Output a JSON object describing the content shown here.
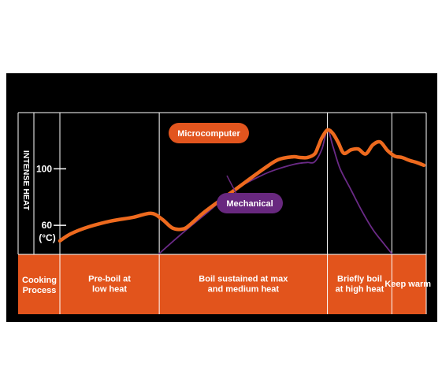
{
  "chart_data": {
    "type": "line",
    "title": "",
    "ylabel": "INTENSE HEAT",
    "y_unit": "(°C)",
    "y_ticks": [
      {
        "value": 60,
        "label": "60"
      },
      {
        "value": 100,
        "label": "100"
      }
    ],
    "ylim": [
      40,
      137
    ],
    "xlim": [
      0,
      100
    ],
    "grid": false,
    "series": [
      {
        "name": "Microcomputer",
        "color": "#ee6a1e",
        "x": [
          0,
          3,
          8,
          14,
          20,
          25,
          28,
          31,
          34,
          36,
          40,
          48,
          56,
          60,
          64,
          66,
          68,
          70,
          71,
          72,
          73.5,
          75,
          76.5,
          78,
          80,
          82,
          84,
          86,
          88,
          90,
          92,
          94,
          96,
          98,
          100
        ],
        "y": [
          49,
          54,
          59,
          63,
          65.6,
          68.5,
          64.5,
          58,
          57.5,
          61,
          70,
          85,
          100,
          106.5,
          108.5,
          108,
          108,
          110.5,
          116,
          122,
          127.5,
          125,
          118.5,
          111,
          113.5,
          114,
          110.5,
          117,
          119,
          113,
          109,
          108,
          106,
          104.5,
          102.5
        ]
      },
      {
        "name": "Mechanical",
        "color": "#6a2a86",
        "x": [
          27.3,
          33,
          40,
          48,
          56,
          60,
          64,
          66,
          68,
          70,
          72,
          73.5,
          75,
          77,
          80,
          83,
          86,
          89,
          91.2
        ],
        "y": [
          40,
          53,
          68,
          85,
          96,
          100,
          103,
          104,
          104.5,
          105,
          114,
          127.5,
          116,
          100,
          85,
          70,
          57,
          47,
          40
        ]
      }
    ],
    "process_row_label": "Cooking Process",
    "stages": [
      {
        "label": "Pre-boil at low heat",
        "start": 0,
        "end": 27.3
      },
      {
        "label": "Boil sustained at max and medium heat",
        "start": 27.3,
        "end": 73.5
      },
      {
        "label": "Briefly boil at high heat",
        "start": 73.5,
        "end": 91.2
      },
      {
        "label": "Keep warm",
        "start": 91.2,
        "end": 100
      }
    ],
    "annotations": [
      {
        "text": "Microcomputer",
        "series": "Microcomputer",
        "fill": "#e2551e"
      },
      {
        "text": "Mechanical",
        "series": "Mechanical",
        "fill": "#68287f"
      }
    ]
  },
  "colors": {
    "page_background": "#ffffff",
    "panel_background": "#000000",
    "grid_line": "#ffffff",
    "band_fill": "#e2541c",
    "text_light": "#ffffff"
  }
}
